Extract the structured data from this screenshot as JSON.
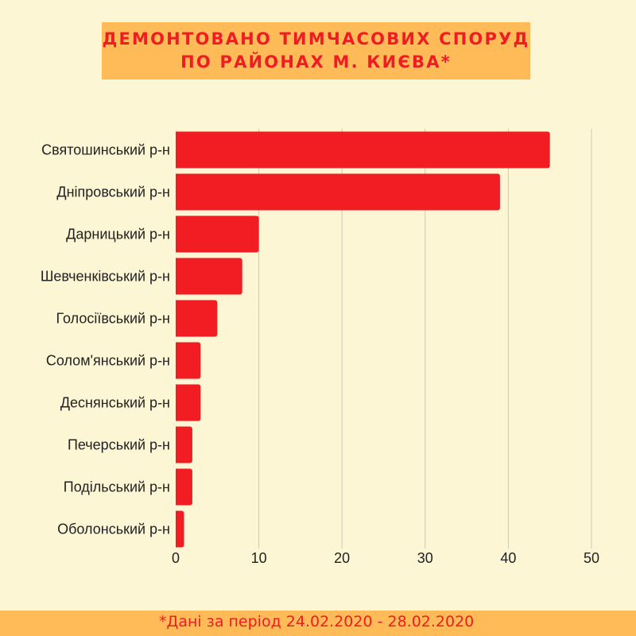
{
  "chart_data": {
    "type": "bar",
    "orientation": "horizontal",
    "title": [
      "ДЕМОНТОВАНО ТИМЧАСОВИХ СПОРУД",
      "ПО РАЙОНАХ М. КИЄВА*"
    ],
    "categories": [
      "Святошинський р-н",
      "Дніпровський р-н",
      "Дарницький р-н",
      "Шевченківський р-н",
      "Голосіївський р-н",
      "Солом'янський р-н",
      "Деснянський р-н",
      "Печерський р-н",
      "Подільський р-н",
      "Оболонський р-н"
    ],
    "values": [
      45,
      39,
      10,
      8,
      5,
      3,
      3,
      2,
      2,
      1
    ],
    "xlim": [
      0,
      50
    ],
    "xticks": [
      0,
      10,
      20,
      30,
      40,
      50
    ],
    "grid": true,
    "bar_color": "#f11d22",
    "note": "*Дані за період 24.02.2020 - 28.02.2020"
  }
}
